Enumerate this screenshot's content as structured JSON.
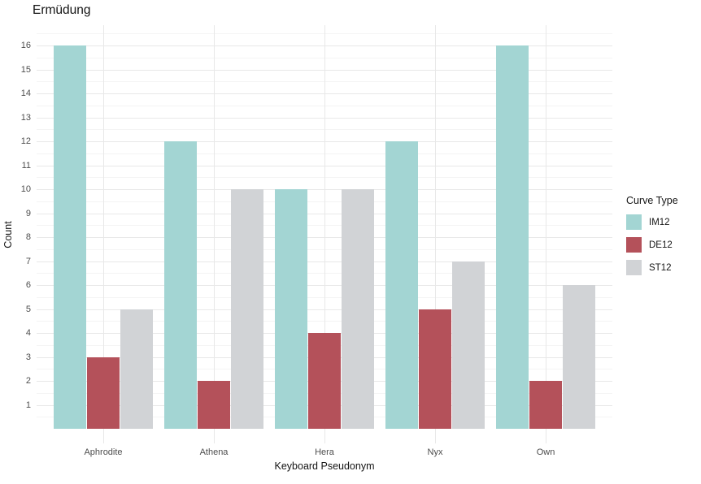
{
  "title": "Ermüdung",
  "chart_data": {
    "type": "bar",
    "title": "Ermüdung",
    "xlabel": "Keyboard Pseudonym",
    "ylabel": "Count",
    "categories": [
      "Aphrodite",
      "Athena",
      "Hera",
      "Nyx",
      "Own"
    ],
    "series": [
      {
        "name": "IM12",
        "color": "#a3d5d3",
        "values": [
          16,
          12,
          10,
          12,
          16
        ]
      },
      {
        "name": "DE12",
        "color": "#b4515a",
        "values": [
          3,
          2,
          4,
          5,
          2
        ]
      },
      {
        "name": "ST12",
        "color": "#d1d3d6",
        "values": [
          5,
          10,
          10,
          7,
          6
        ]
      }
    ],
    "legend_title": "Curve Type",
    "legend_position": "right",
    "y_ticks": [
      1,
      2,
      3,
      4,
      5,
      6,
      7,
      8,
      9,
      10,
      11,
      12,
      13,
      14,
      15,
      16
    ],
    "ylim": [
      0,
      16.85
    ],
    "grid": {
      "show_major": true,
      "show_minor_horizontal": true,
      "major_color": "#e8e8e8",
      "minor_color": "#f4f4f4",
      "background": "#ffffff"
    },
    "axis_text_color": "#4d4d4d",
    "title_color": "#141414"
  }
}
